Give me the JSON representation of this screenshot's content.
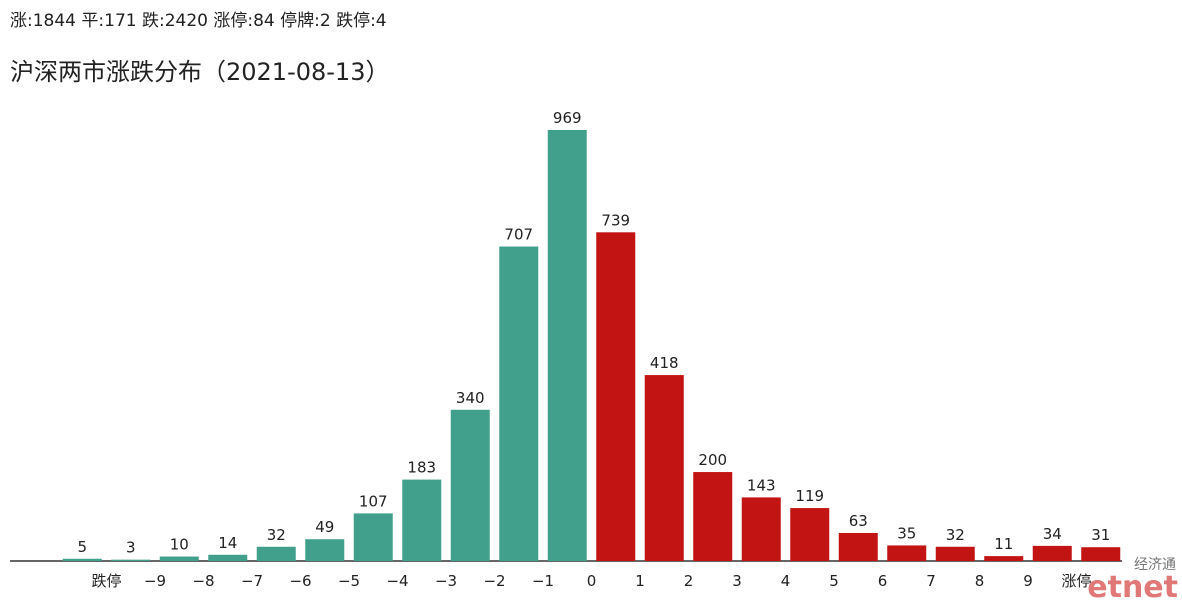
{
  "chart_data": {
    "type": "bar",
    "summary": "涨:1844 平:171 跌:2420 涨停:84 停牌:2 跌停:4",
    "title": "沪深两市涨跌分布（2021-08-13）",
    "boundary_labels": [
      "跌停",
      "−9",
      "−8",
      "−7",
      "−6",
      "−5",
      "−4",
      "−3",
      "−2",
      "−1",
      "0",
      "1",
      "2",
      "3",
      "4",
      "5",
      "6",
      "7",
      "8",
      "9",
      "涨停"
    ],
    "values": [
      5,
      3,
      10,
      14,
      32,
      49,
      107,
      183,
      340,
      707,
      969,
      739,
      418,
      200,
      143,
      119,
      63,
      35,
      32,
      11,
      34,
      31
    ],
    "colors": [
      "#40a08c",
      "#40a08c",
      "#40a08c",
      "#40a08c",
      "#40a08c",
      "#40a08c",
      "#40a08c",
      "#40a08c",
      "#40a08c",
      "#40a08c",
      "#40a08c",
      "#c31414",
      "#c31414",
      "#c31414",
      "#c31414",
      "#c31414",
      "#c31414",
      "#c31414",
      "#c31414",
      "#c31414",
      "#c31414",
      "#c31414"
    ],
    "watermark": {
      "top": "经济通",
      "bottom": "etnet"
    }
  }
}
